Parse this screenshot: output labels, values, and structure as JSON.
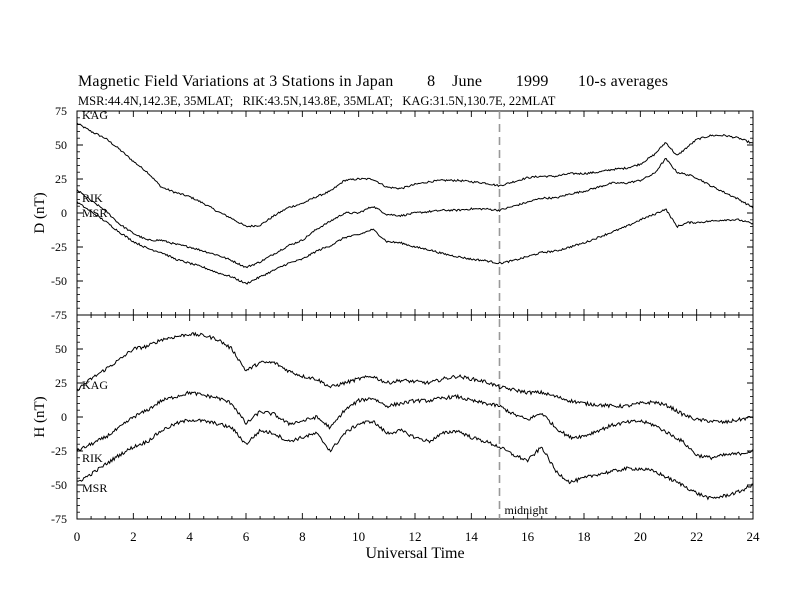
{
  "chart_data": {
    "type": "line",
    "title": "Magnetic Field Variations at 3 Stations in Japan        8    June        1999       10-s averages",
    "subtitle": "MSR:44.4N,142.3E, 35MLAT;   RIK:43.5N,143.8E, 35MLAT;   KAG:31.5N,130.7E, 22MLAT",
    "xlabel": "Universal Time",
    "xlim": [
      0,
      24
    ],
    "x_ticks": [
      "0",
      "2",
      "4",
      "6",
      "8",
      "10",
      "12",
      "14",
      "16",
      "18",
      "20",
      "22",
      "24"
    ],
    "midnight": {
      "x": 15,
      "label": "midnight"
    },
    "panels": [
      {
        "ylabel": "D (nT)",
        "ylim": [
          -75,
          75
        ],
        "y_ticks": [
          "75",
          "50",
          "25",
          "0",
          "-25",
          "-50",
          "-75"
        ],
        "series": [
          {
            "name": "KAG",
            "x": [
              0,
              0.5,
              1,
              1.5,
              2,
              2.5,
              3,
              3.5,
              4,
              4.5,
              5,
              5.5,
              6,
              6.5,
              7,
              7.5,
              8,
              8.5,
              9,
              9.5,
              10,
              10.5,
              11,
              11.5,
              12,
              12.5,
              13,
              13.5,
              14,
              14.5,
              15,
              15.5,
              16,
              16.5,
              17,
              17.5,
              18,
              18.5,
              19,
              19.5,
              20,
              20.5,
              20.9,
              21.3,
              21.7,
              22,
              22.5,
              23,
              23.5,
              24
            ],
            "values": [
              66,
              60,
              55,
              47,
              38,
              30,
              19,
              15,
              12,
              7,
              1,
              -4,
              -10,
              -9,
              -2,
              4,
              7,
              12,
              16,
              24,
              25,
              25,
              19,
              18,
              21,
              23,
              24,
              24,
              23,
              22,
              20,
              23,
              26,
              27,
              27,
              29,
              29,
              30,
              32,
              33,
              36,
              43,
              52,
              42,
              49,
              54,
              57,
              57,
              55,
              51
            ]
          },
          {
            "name": "RIK",
            "x": [
              0,
              0.5,
              1,
              1.5,
              2,
              2.5,
              3,
              3.5,
              4,
              4.5,
              5,
              5.5,
              6,
              6.5,
              7,
              7.5,
              8,
              8.5,
              9,
              9.5,
              10,
              10.5,
              11,
              11.5,
              12,
              12.5,
              13,
              13.5,
              14,
              14.5,
              15,
              15.5,
              16,
              16.5,
              17,
              17.5,
              18,
              18.5,
              19,
              19.5,
              20,
              20.5,
              20.9,
              21.3,
              21.7,
              22,
              22.5,
              23,
              23.5,
              24
            ],
            "values": [
              17,
              9,
              2,
              -8,
              -15,
              -20,
              -20,
              -23,
              -25,
              -28,
              -31,
              -35,
              -40,
              -36,
              -30,
              -24,
              -20,
              -12,
              -6,
              0,
              0,
              5,
              -1,
              -2,
              0,
              1,
              2,
              2,
              3,
              3,
              2,
              5,
              8,
              11,
              11,
              14,
              16,
              19,
              22,
              22,
              24,
              29,
              40,
              30,
              28,
              26,
              20,
              15,
              10,
              4
            ]
          },
          {
            "name": "MSR",
            "x": [
              0,
              0.5,
              1,
              1.5,
              2,
              2.5,
              3,
              3.5,
              4,
              4.5,
              5,
              5.5,
              6,
              6.5,
              7,
              7.5,
              8,
              8.5,
              9,
              9.5,
              10,
              10.5,
              11,
              11.5,
              12,
              12.5,
              13,
              13.5,
              14,
              14.5,
              15,
              15.5,
              16,
              16.5,
              17,
              17.5,
              18,
              18.5,
              19,
              19.5,
              20,
              20.5,
              20.9,
              21.3,
              21.7,
              22,
              22.5,
              23,
              23.5,
              24
            ],
            "values": [
              8,
              1,
              -6,
              -14,
              -21,
              -26,
              -29,
              -34,
              -37,
              -40,
              -44,
              -47,
              -52,
              -47,
              -42,
              -37,
              -34,
              -28,
              -24,
              -18,
              -16,
              -12,
              -21,
              -22,
              -25,
              -27,
              -30,
              -32,
              -34,
              -35,
              -37,
              -35,
              -32,
              -29,
              -28,
              -25,
              -22,
              -18,
              -14,
              -10,
              -5,
              -1,
              3,
              -10,
              -7,
              -7,
              -6,
              -5,
              -5,
              -8
            ]
          }
        ]
      },
      {
        "ylabel": "H (nT)",
        "ylim": [
          -75,
          75
        ],
        "y_ticks": [
          "50",
          "25",
          "0",
          "-25",
          "-50",
          "-75"
        ],
        "series": [
          {
            "name": "KAG",
            "x": [
              0,
              0.5,
              1,
              1.5,
              2,
              2.5,
              3,
              3.5,
              4,
              4.5,
              5,
              5.5,
              6,
              6.5,
              7,
              7.5,
              8,
              8.5,
              9,
              9.5,
              10,
              10.5,
              11,
              11.5,
              12,
              12.5,
              13,
              13.5,
              14,
              14.5,
              15,
              15.5,
              16,
              16.5,
              17,
              17.5,
              18,
              18.5,
              19,
              19.5,
              20,
              20.5,
              21,
              21.5,
              22,
              22.5,
              23,
              23.5,
              24
            ],
            "values": [
              20,
              28,
              35,
              42,
              50,
              52,
              57,
              59,
              61,
              60,
              57,
              50,
              34,
              40,
              40,
              34,
              30,
              28,
              22,
              25,
              28,
              30,
              25,
              27,
              26,
              25,
              28,
              30,
              28,
              26,
              22,
              20,
              18,
              18,
              15,
              12,
              10,
              9,
              8,
              8,
              10,
              11,
              8,
              2,
              -2,
              -3,
              -4,
              -2,
              0
            ]
          },
          {
            "name": "RIK",
            "x": [
              0,
              0.5,
              1,
              1.5,
              2,
              2.5,
              3,
              3.5,
              4,
              4.5,
              5,
              5.5,
              6,
              6.5,
              7,
              7.5,
              8,
              8.5,
              9,
              9.5,
              10,
              10.5,
              11,
              11.5,
              12,
              12.5,
              13,
              13.5,
              14,
              14.5,
              15,
              15.5,
              16,
              16.5,
              17,
              17.5,
              18,
              18.5,
              19,
              19.5,
              20,
              20.5,
              21,
              21.5,
              22,
              22.5,
              23,
              23.5,
              24
            ],
            "values": [
              -25,
              -20,
              -15,
              -8,
              0,
              5,
              12,
              15,
              18,
              16,
              14,
              10,
              -5,
              4,
              2,
              -5,
              -3,
              0,
              -8,
              5,
              12,
              14,
              8,
              10,
              12,
              12,
              14,
              15,
              12,
              10,
              8,
              2,
              -2,
              3,
              -8,
              -15,
              -14,
              -10,
              -6,
              -4,
              -3,
              -6,
              -12,
              -18,
              -28,
              -30,
              -28,
              -27,
              -25
            ]
          },
          {
            "name": "MSR",
            "x": [
              0,
              0.5,
              1,
              1.5,
              2,
              2.5,
              3,
              3.5,
              4,
              4.5,
              5,
              5.5,
              6,
              6.5,
              7,
              7.5,
              8,
              8.5,
              9,
              9.5,
              10,
              10.5,
              11,
              11.5,
              12,
              12.5,
              13,
              13.5,
              14,
              14.5,
              15,
              15.5,
              16,
              16.5,
              17,
              17.5,
              18,
              18.5,
              19,
              19.5,
              20,
              20.5,
              21,
              21.5,
              22,
              22.5,
              23,
              23.5,
              24
            ],
            "values": [
              -48,
              -42,
              -35,
              -28,
              -22,
              -18,
              -10,
              -5,
              -2,
              -3,
              -5,
              -8,
              -20,
              -10,
              -12,
              -18,
              -15,
              -12,
              -25,
              -12,
              -5,
              -3,
              -12,
              -10,
              -15,
              -18,
              -12,
              -10,
              -15,
              -18,
              -22,
              -28,
              -32,
              -22,
              -40,
              -48,
              -45,
              -42,
              -40,
              -38,
              -38,
              -40,
              -45,
              -50,
              -56,
              -60,
              -58,
              -55,
              -50
            ]
          }
        ]
      }
    ]
  }
}
